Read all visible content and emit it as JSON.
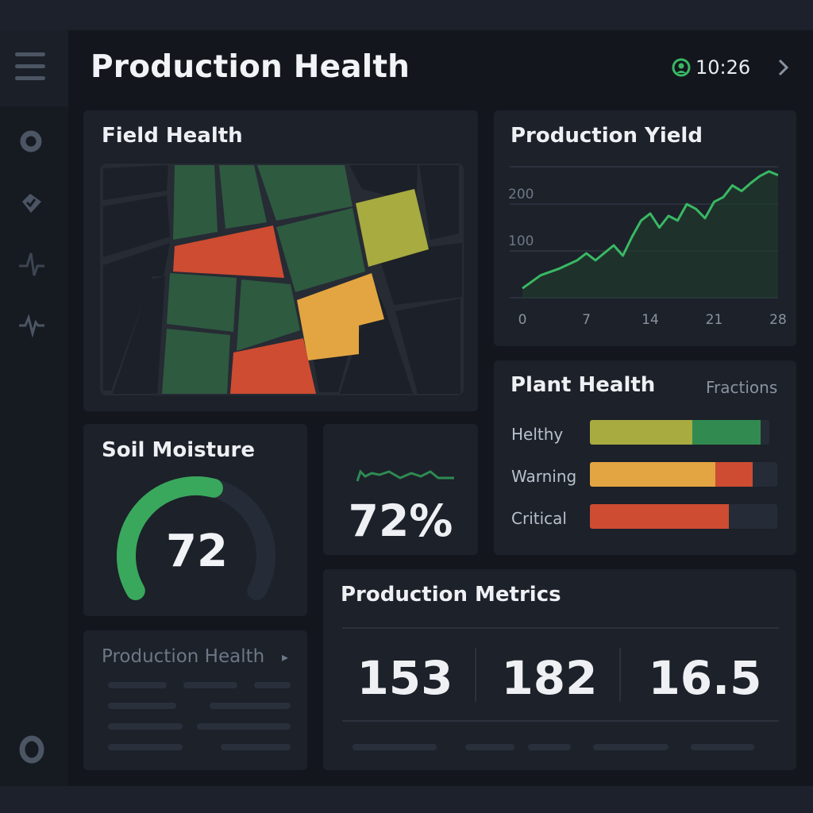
{
  "header": {
    "title": "Production Health",
    "clock": "10:26"
  },
  "field_health": {
    "title": "Field Health"
  },
  "production_yield": {
    "title": "Production Yield",
    "chart_data": {
      "type": "area",
      "x": [
        0,
        2,
        4,
        6,
        7,
        8,
        10,
        11,
        12,
        13,
        14,
        15,
        16,
        17,
        18,
        19,
        20,
        21,
        22,
        23,
        24,
        25,
        26,
        27,
        28
      ],
      "y": [
        20,
        48,
        62,
        80,
        95,
        80,
        112,
        90,
        130,
        165,
        180,
        150,
        175,
        165,
        200,
        190,
        170,
        205,
        215,
        240,
        228,
        245,
        260,
        270,
        262
      ],
      "xticks": [
        "0",
        "7",
        "14",
        "21",
        "28"
      ],
      "yticks": [
        "100",
        "200"
      ],
      "xlim": [
        0,
        28
      ],
      "ylim": [
        0,
        280
      ],
      "grid": true,
      "color": "#39b864",
      "fill": "#1f3a2c"
    }
  },
  "plant_health": {
    "title": "Plant Health",
    "subtitle": "Fractions",
    "rows": [
      {
        "label": "Helthy",
        "segments": [
          {
            "value": 0.57,
            "color": "#a8ab3f"
          },
          {
            "value": 0.38,
            "color": "#318a4f"
          }
        ]
      },
      {
        "label": "Warning",
        "segments": [
          {
            "value": 0.67,
            "color": "#e3a541"
          },
          {
            "value": 0.2,
            "color": "#cd4c32"
          }
        ]
      },
      {
        "label": "Critical",
        "segments": [
          {
            "value": 0.74,
            "color": "#cd4c32"
          }
        ]
      }
    ]
  },
  "soil_moisture": {
    "title": "Soil Moisture",
    "value": "72",
    "gauge_fraction": 0.56
  },
  "moisture_tile": {
    "value": "72%"
  },
  "production_health_panel": {
    "title": "Production Health",
    "arrow": "▸"
  },
  "production_metrics": {
    "title": "Production Metrics",
    "values": [
      "153",
      "182",
      "16.5"
    ]
  },
  "colors": {
    "green": "#39b864",
    "dark_green": "#2e5a40",
    "yellow": "#a8ab3f",
    "orange": "#e3a541",
    "red": "#cd4c32",
    "panel": "#1c212a"
  },
  "icons": {
    "menu": "hamburger-icon",
    "clock": "user-clock-icon",
    "chevron": "chevron-right-icon",
    "side": [
      "settings-icon",
      "tag-icon",
      "pulse-icon",
      "activity-icon",
      "circle-icon"
    ]
  }
}
